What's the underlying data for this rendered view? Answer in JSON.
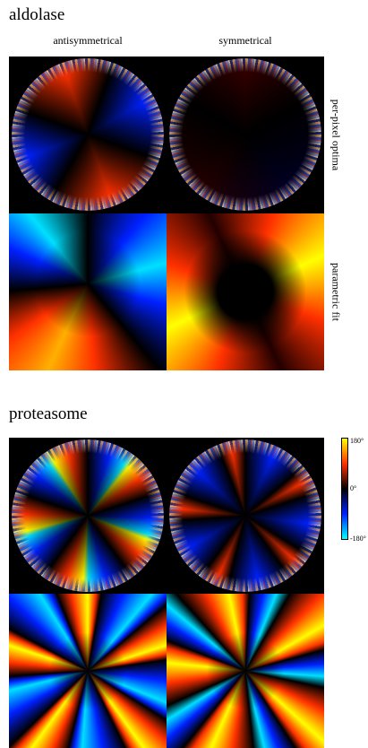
{
  "figure": {
    "panels": [
      {
        "title": "aldolase",
        "column_labels": [
          "antisymmetrical",
          "symmetrical"
        ],
        "row_labels": [
          "per-pixel optima",
          "parametric fit"
        ]
      },
      {
        "title": "proteasome"
      }
    ],
    "colorbar": {
      "labels": [
        "180°",
        "0°",
        "-180°"
      ]
    }
  }
}
